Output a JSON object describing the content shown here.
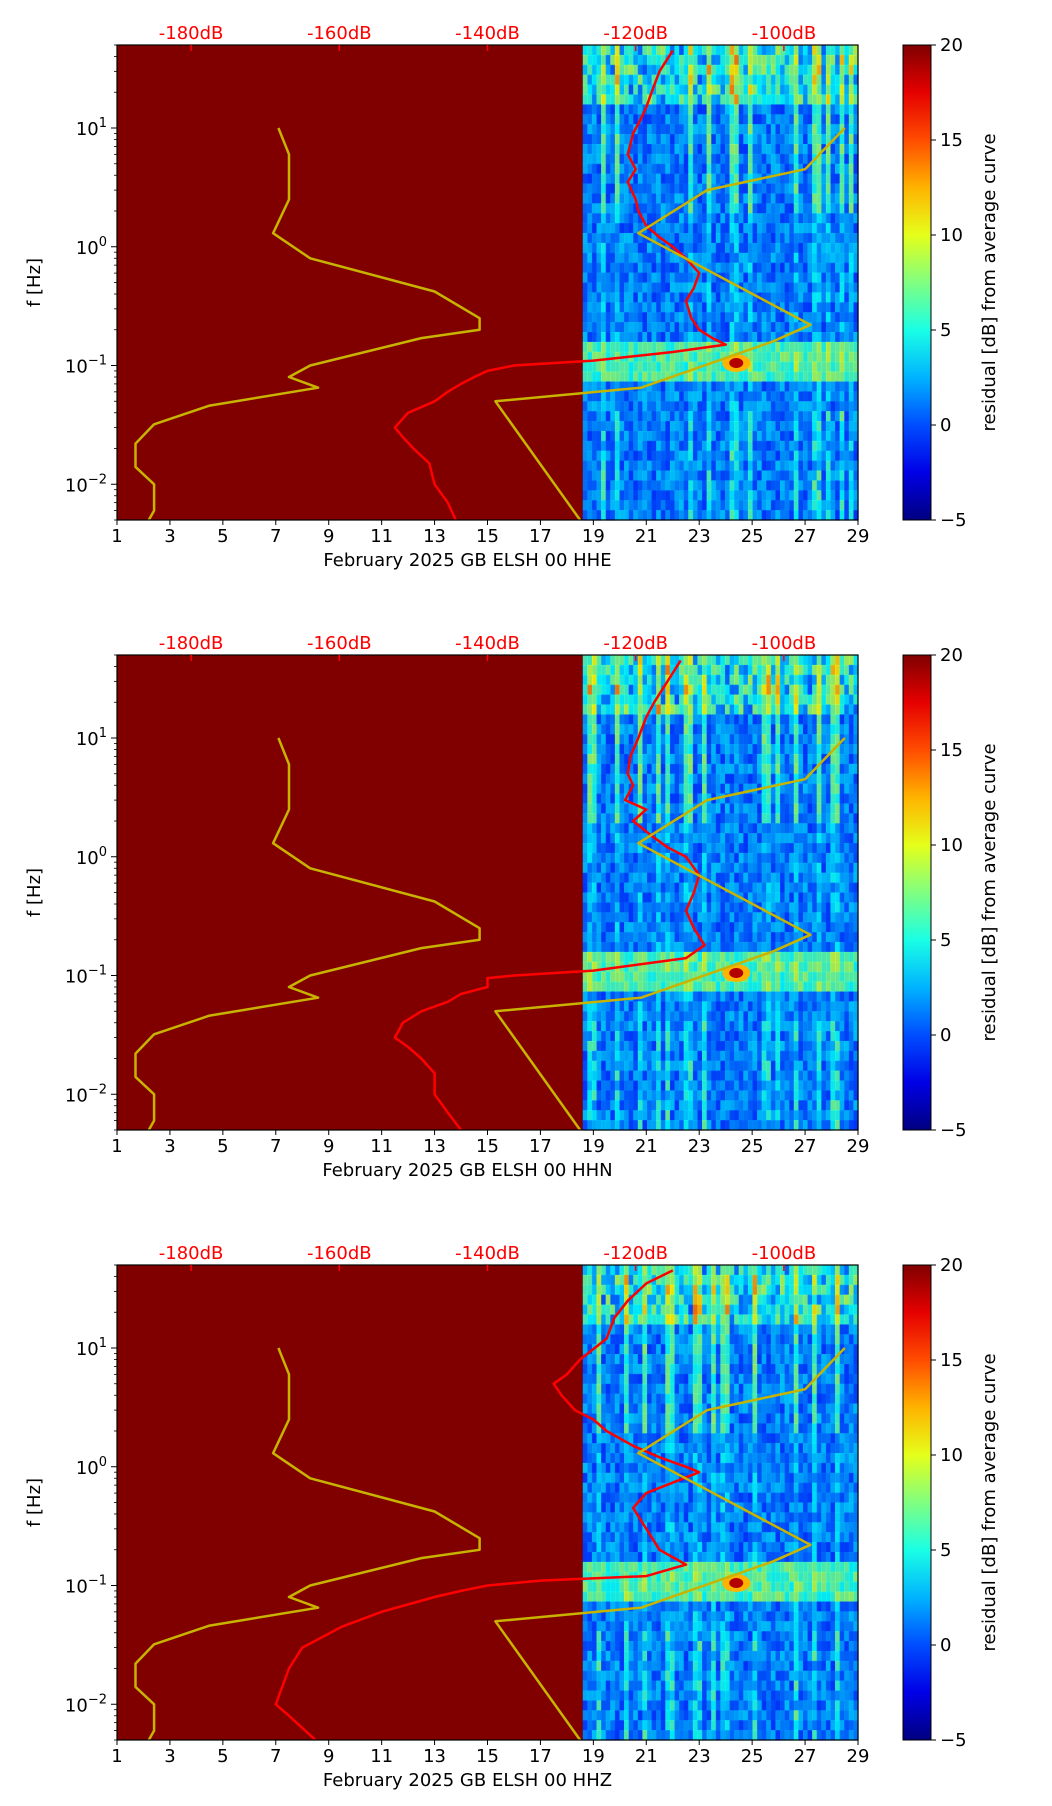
{
  "figure": {
    "title": ""
  },
  "chart_data": [
    {
      "type": "heatmap",
      "title": "",
      "xlabel": "February 2025 GB ELSH 00 HHE",
      "ylabel": "f [Hz]",
      "xlim": [
        1,
        29
      ],
      "x_ticks": [
        "1",
        "3",
        "5",
        "7",
        "9",
        "11",
        "13",
        "15",
        "17",
        "19",
        "21",
        "23",
        "25",
        "27",
        "29"
      ],
      "yscale": "log",
      "ylim": [
        0.005,
        50
      ],
      "y_ticks": [
        {
          "base": "10",
          "exp": "−2"
        },
        {
          "base": "10",
          "exp": "−1"
        },
        {
          "base": "10",
          "exp": "0"
        },
        {
          "base": "10",
          "exp": "1"
        }
      ],
      "data_start_day": 18.6,
      "top_axis": {
        "ticks": [
          "-180dB",
          "-160dB",
          "-140dB",
          "-120dB",
          "-100dB"
        ],
        "tick_x_days": [
          3.8,
          9.4,
          15.0,
          20.6,
          26.2
        ],
        "color": "#ff0000"
      },
      "colorbar": {
        "label": "residual [dB] from average curve",
        "range": [
          -5,
          20
        ],
        "ticks": [
          "20",
          "15",
          "10",
          "5",
          "0",
          "−5"
        ],
        "tick_values": [
          20,
          15,
          10,
          5,
          0,
          -5
        ]
      },
      "series": [
        {
          "name": "median PSD (red)",
          "color": "#ff0000",
          "points": [
            [
              22.0,
              45
            ],
            [
              21.5,
              30
            ],
            [
              21.2,
              20
            ],
            [
              21.0,
              15
            ],
            [
              20.8,
              12
            ],
            [
              20.5,
              9
            ],
            [
              20.3,
              6
            ],
            [
              20.6,
              4.5
            ],
            [
              20.3,
              3.5
            ],
            [
              20.6,
              2.5
            ],
            [
              20.7,
              2
            ],
            [
              21.0,
              1.5
            ],
            [
              21.5,
              1.2
            ],
            [
              22.0,
              1.0
            ],
            [
              22.5,
              0.8
            ],
            [
              23.0,
              0.6
            ],
            [
              22.8,
              0.45
            ],
            [
              22.5,
              0.35
            ],
            [
              22.7,
              0.25
            ],
            [
              23.0,
              0.2
            ],
            [
              23.5,
              0.17
            ],
            [
              24.0,
              0.15
            ],
            [
              22.0,
              0.13
            ],
            [
              19.0,
              0.11
            ],
            [
              16.0,
              0.1
            ],
            [
              15.0,
              0.09
            ],
            [
              14.5,
              0.08
            ],
            [
              14.0,
              0.07
            ],
            [
              13.5,
              0.06
            ],
            [
              13.0,
              0.05
            ],
            [
              12.0,
              0.04
            ],
            [
              11.5,
              0.03
            ],
            [
              11.8,
              0.025
            ],
            [
              12.2,
              0.02
            ],
            [
              12.8,
              0.015
            ],
            [
              13.0,
              0.01
            ],
            [
              13.5,
              0.007
            ],
            [
              13.8,
              0.005
            ]
          ]
        },
        {
          "name": "reference curve (yellow)",
          "color": "#c8b400",
          "points": [
            [
              7.1,
              10
            ],
            [
              7.5,
              6
            ],
            [
              7.5,
              2.5
            ],
            [
              6.9,
              1.3
            ],
            [
              8.3,
              0.8
            ],
            [
              13,
              0.42
            ],
            [
              14.7,
              0.25
            ],
            [
              14.7,
              0.2
            ],
            [
              12.5,
              0.17
            ],
            [
              8.3,
              0.1
            ],
            [
              7.5,
              0.08
            ],
            [
              8.6,
              0.065
            ],
            [
              4.5,
              0.046
            ],
            [
              2.4,
              0.032
            ],
            [
              1.7,
              0.022
            ],
            [
              1.7,
              0.014
            ],
            [
              2.4,
              0.01
            ],
            [
              2.4,
              0.006
            ],
            [
              2.2,
              0.005
            ]
          ]
        },
        {
          "name": "reference curve 2 (yellow)",
          "color": "#c8b400",
          "points": [
            [
              28.5,
              10
            ],
            [
              27.0,
              4.5
            ],
            [
              23.3,
              3.0
            ],
            [
              20.7,
              1.3
            ],
            [
              27.2,
              0.22
            ],
            [
              25.8,
              0.16
            ],
            [
              20.8,
              0.065
            ],
            [
              15.3,
              0.05
            ],
            [
              18.5,
              0.005
            ]
          ]
        }
      ]
    },
    {
      "type": "heatmap",
      "title": "",
      "xlabel": "February 2025 GB ELSH 00 HHN",
      "ylabel": "f [Hz]",
      "xlim": [
        1,
        29
      ],
      "x_ticks": [
        "1",
        "3",
        "5",
        "7",
        "9",
        "11",
        "13",
        "15",
        "17",
        "19",
        "21",
        "23",
        "25",
        "27",
        "29"
      ],
      "yscale": "log",
      "ylim": [
        0.005,
        50
      ],
      "y_ticks": [
        {
          "base": "10",
          "exp": "−2"
        },
        {
          "base": "10",
          "exp": "−1"
        },
        {
          "base": "10",
          "exp": "0"
        },
        {
          "base": "10",
          "exp": "1"
        }
      ],
      "data_start_day": 18.6,
      "top_axis": {
        "ticks": [
          "-180dB",
          "-160dB",
          "-140dB",
          "-120dB",
          "-100dB"
        ],
        "tick_x_days": [
          3.8,
          9.4,
          15.0,
          20.6,
          26.2
        ],
        "color": "#ff0000"
      },
      "colorbar": {
        "label": "residual [dB] from average curve",
        "range": [
          -5,
          20
        ],
        "ticks": [
          "20",
          "15",
          "10",
          "5",
          "0",
          "−5"
        ],
        "tick_values": [
          20,
          15,
          10,
          5,
          0,
          -5
        ]
      },
      "series": [
        {
          "name": "median PSD (red)",
          "color": "#ff0000",
          "points": [
            [
              22.3,
              45
            ],
            [
              21.8,
              30
            ],
            [
              21.3,
              20
            ],
            [
              21.0,
              15
            ],
            [
              20.7,
              10
            ],
            [
              20.4,
              7
            ],
            [
              20.3,
              5
            ],
            [
              20.5,
              4
            ],
            [
              20.2,
              3
            ],
            [
              21.0,
              2.5
            ],
            [
              20.5,
              2
            ],
            [
              21.2,
              1.5
            ],
            [
              21.8,
              1.2
            ],
            [
              22.5,
              1.0
            ],
            [
              23.0,
              0.7
            ],
            [
              22.8,
              0.5
            ],
            [
              22.5,
              0.35
            ],
            [
              22.8,
              0.25
            ],
            [
              23.2,
              0.18
            ],
            [
              22.5,
              0.14
            ],
            [
              19.0,
              0.11
            ],
            [
              16.0,
              0.1
            ],
            [
              15.0,
              0.095
            ],
            [
              15.0,
              0.08
            ],
            [
              14.0,
              0.07
            ],
            [
              13.5,
              0.06
            ],
            [
              12.5,
              0.05
            ],
            [
              11.8,
              0.04
            ],
            [
              11.5,
              0.03
            ],
            [
              12.0,
              0.025
            ],
            [
              12.5,
              0.02
            ],
            [
              13.0,
              0.015
            ],
            [
              13.0,
              0.01
            ],
            [
              13.5,
              0.007
            ],
            [
              14.0,
              0.005
            ]
          ]
        },
        {
          "name": "reference curve (yellow)",
          "color": "#c8b400",
          "points": [
            [
              7.1,
              10
            ],
            [
              7.5,
              6
            ],
            [
              7.5,
              2.5
            ],
            [
              6.9,
              1.3
            ],
            [
              8.3,
              0.8
            ],
            [
              13,
              0.42
            ],
            [
              14.7,
              0.25
            ],
            [
              14.7,
              0.2
            ],
            [
              12.5,
              0.17
            ],
            [
              8.3,
              0.1
            ],
            [
              7.5,
              0.08
            ],
            [
              8.6,
              0.065
            ],
            [
              4.5,
              0.046
            ],
            [
              2.4,
              0.032
            ],
            [
              1.7,
              0.022
            ],
            [
              1.7,
              0.014
            ],
            [
              2.4,
              0.01
            ],
            [
              2.4,
              0.006
            ],
            [
              2.2,
              0.005
            ]
          ]
        },
        {
          "name": "reference curve 2 (yellow)",
          "color": "#c8b400",
          "points": [
            [
              28.5,
              10
            ],
            [
              27.0,
              4.5
            ],
            [
              23.3,
              3.0
            ],
            [
              20.7,
              1.3
            ],
            [
              27.2,
              0.22
            ],
            [
              25.8,
              0.16
            ],
            [
              20.8,
              0.065
            ],
            [
              15.3,
              0.05
            ],
            [
              18.5,
              0.005
            ]
          ]
        }
      ]
    },
    {
      "type": "heatmap",
      "title": "",
      "xlabel": "February 2025 GB ELSH 00 HHZ",
      "ylabel": "f [Hz]",
      "xlim": [
        1,
        29
      ],
      "x_ticks": [
        "1",
        "3",
        "5",
        "7",
        "9",
        "11",
        "13",
        "15",
        "17",
        "19",
        "21",
        "23",
        "25",
        "27",
        "29"
      ],
      "yscale": "log",
      "ylim": [
        0.005,
        50
      ],
      "y_ticks": [
        {
          "base": "10",
          "exp": "−2"
        },
        {
          "base": "10",
          "exp": "−1"
        },
        {
          "base": "10",
          "exp": "0"
        },
        {
          "base": "10",
          "exp": "1"
        }
      ],
      "data_start_day": 18.6,
      "top_axis": {
        "ticks": [
          "-180dB",
          "-160dB",
          "-140dB",
          "-120dB",
          "-100dB"
        ],
        "tick_x_days": [
          3.8,
          9.4,
          15.0,
          20.6,
          26.2
        ],
        "color": "#ff0000"
      },
      "colorbar": {
        "label": "residual [dB] from average curve",
        "range": [
          -5,
          20
        ],
        "ticks": [
          "20",
          "15",
          "10",
          "5",
          "0",
          "−5"
        ],
        "tick_values": [
          20,
          15,
          10,
          5,
          0,
          -5
        ]
      },
      "series": [
        {
          "name": "median PSD (red)",
          "color": "#ff0000",
          "points": [
            [
              22.0,
              45
            ],
            [
              21.0,
              35
            ],
            [
              20.3,
              25
            ],
            [
              19.8,
              18
            ],
            [
              19.5,
              12
            ],
            [
              18.5,
              8
            ],
            [
              18.0,
              6
            ],
            [
              17.5,
              5
            ],
            [
              17.8,
              4
            ],
            [
              18.3,
              3
            ],
            [
              19.0,
              2.5
            ],
            [
              19.5,
              2
            ],
            [
              20.5,
              1.5
            ],
            [
              21.5,
              1.2
            ],
            [
              22.5,
              1.0
            ],
            [
              23.0,
              0.9
            ],
            [
              21.0,
              0.6
            ],
            [
              20.5,
              0.45
            ],
            [
              21.0,
              0.3
            ],
            [
              21.5,
              0.2
            ],
            [
              22.5,
              0.15
            ],
            [
              21.0,
              0.12
            ],
            [
              17.0,
              0.11
            ],
            [
              15.0,
              0.1
            ],
            [
              14.0,
              0.09
            ],
            [
              13.0,
              0.08
            ],
            [
              11.0,
              0.06
            ],
            [
              9.5,
              0.045
            ],
            [
              8.0,
              0.03
            ],
            [
              7.5,
              0.02
            ],
            [
              7.0,
              0.01
            ],
            [
              7.5,
              0.008
            ],
            [
              8.5,
              0.005
            ]
          ]
        },
        {
          "name": "reference curve (yellow)",
          "color": "#c8b400",
          "points": [
            [
              7.1,
              10
            ],
            [
              7.5,
              6
            ],
            [
              7.5,
              2.5
            ],
            [
              6.9,
              1.3
            ],
            [
              8.3,
              0.8
            ],
            [
              13,
              0.42
            ],
            [
              14.7,
              0.25
            ],
            [
              14.7,
              0.2
            ],
            [
              12.5,
              0.17
            ],
            [
              8.3,
              0.1
            ],
            [
              7.5,
              0.08
            ],
            [
              8.6,
              0.065
            ],
            [
              4.5,
              0.046
            ],
            [
              2.4,
              0.032
            ],
            [
              1.7,
              0.022
            ],
            [
              1.7,
              0.014
            ],
            [
              2.4,
              0.01
            ],
            [
              2.4,
              0.006
            ],
            [
              2.2,
              0.005
            ]
          ]
        },
        {
          "name": "reference curve 2 (yellow)",
          "color": "#c8b400",
          "points": [
            [
              28.5,
              10
            ],
            [
              27.0,
              4.5
            ],
            [
              23.3,
              3.0
            ],
            [
              20.7,
              1.3
            ],
            [
              27.2,
              0.22
            ],
            [
              25.8,
              0.16
            ],
            [
              20.8,
              0.065
            ],
            [
              15.3,
              0.05
            ],
            [
              18.5,
              0.005
            ]
          ]
        }
      ]
    }
  ]
}
